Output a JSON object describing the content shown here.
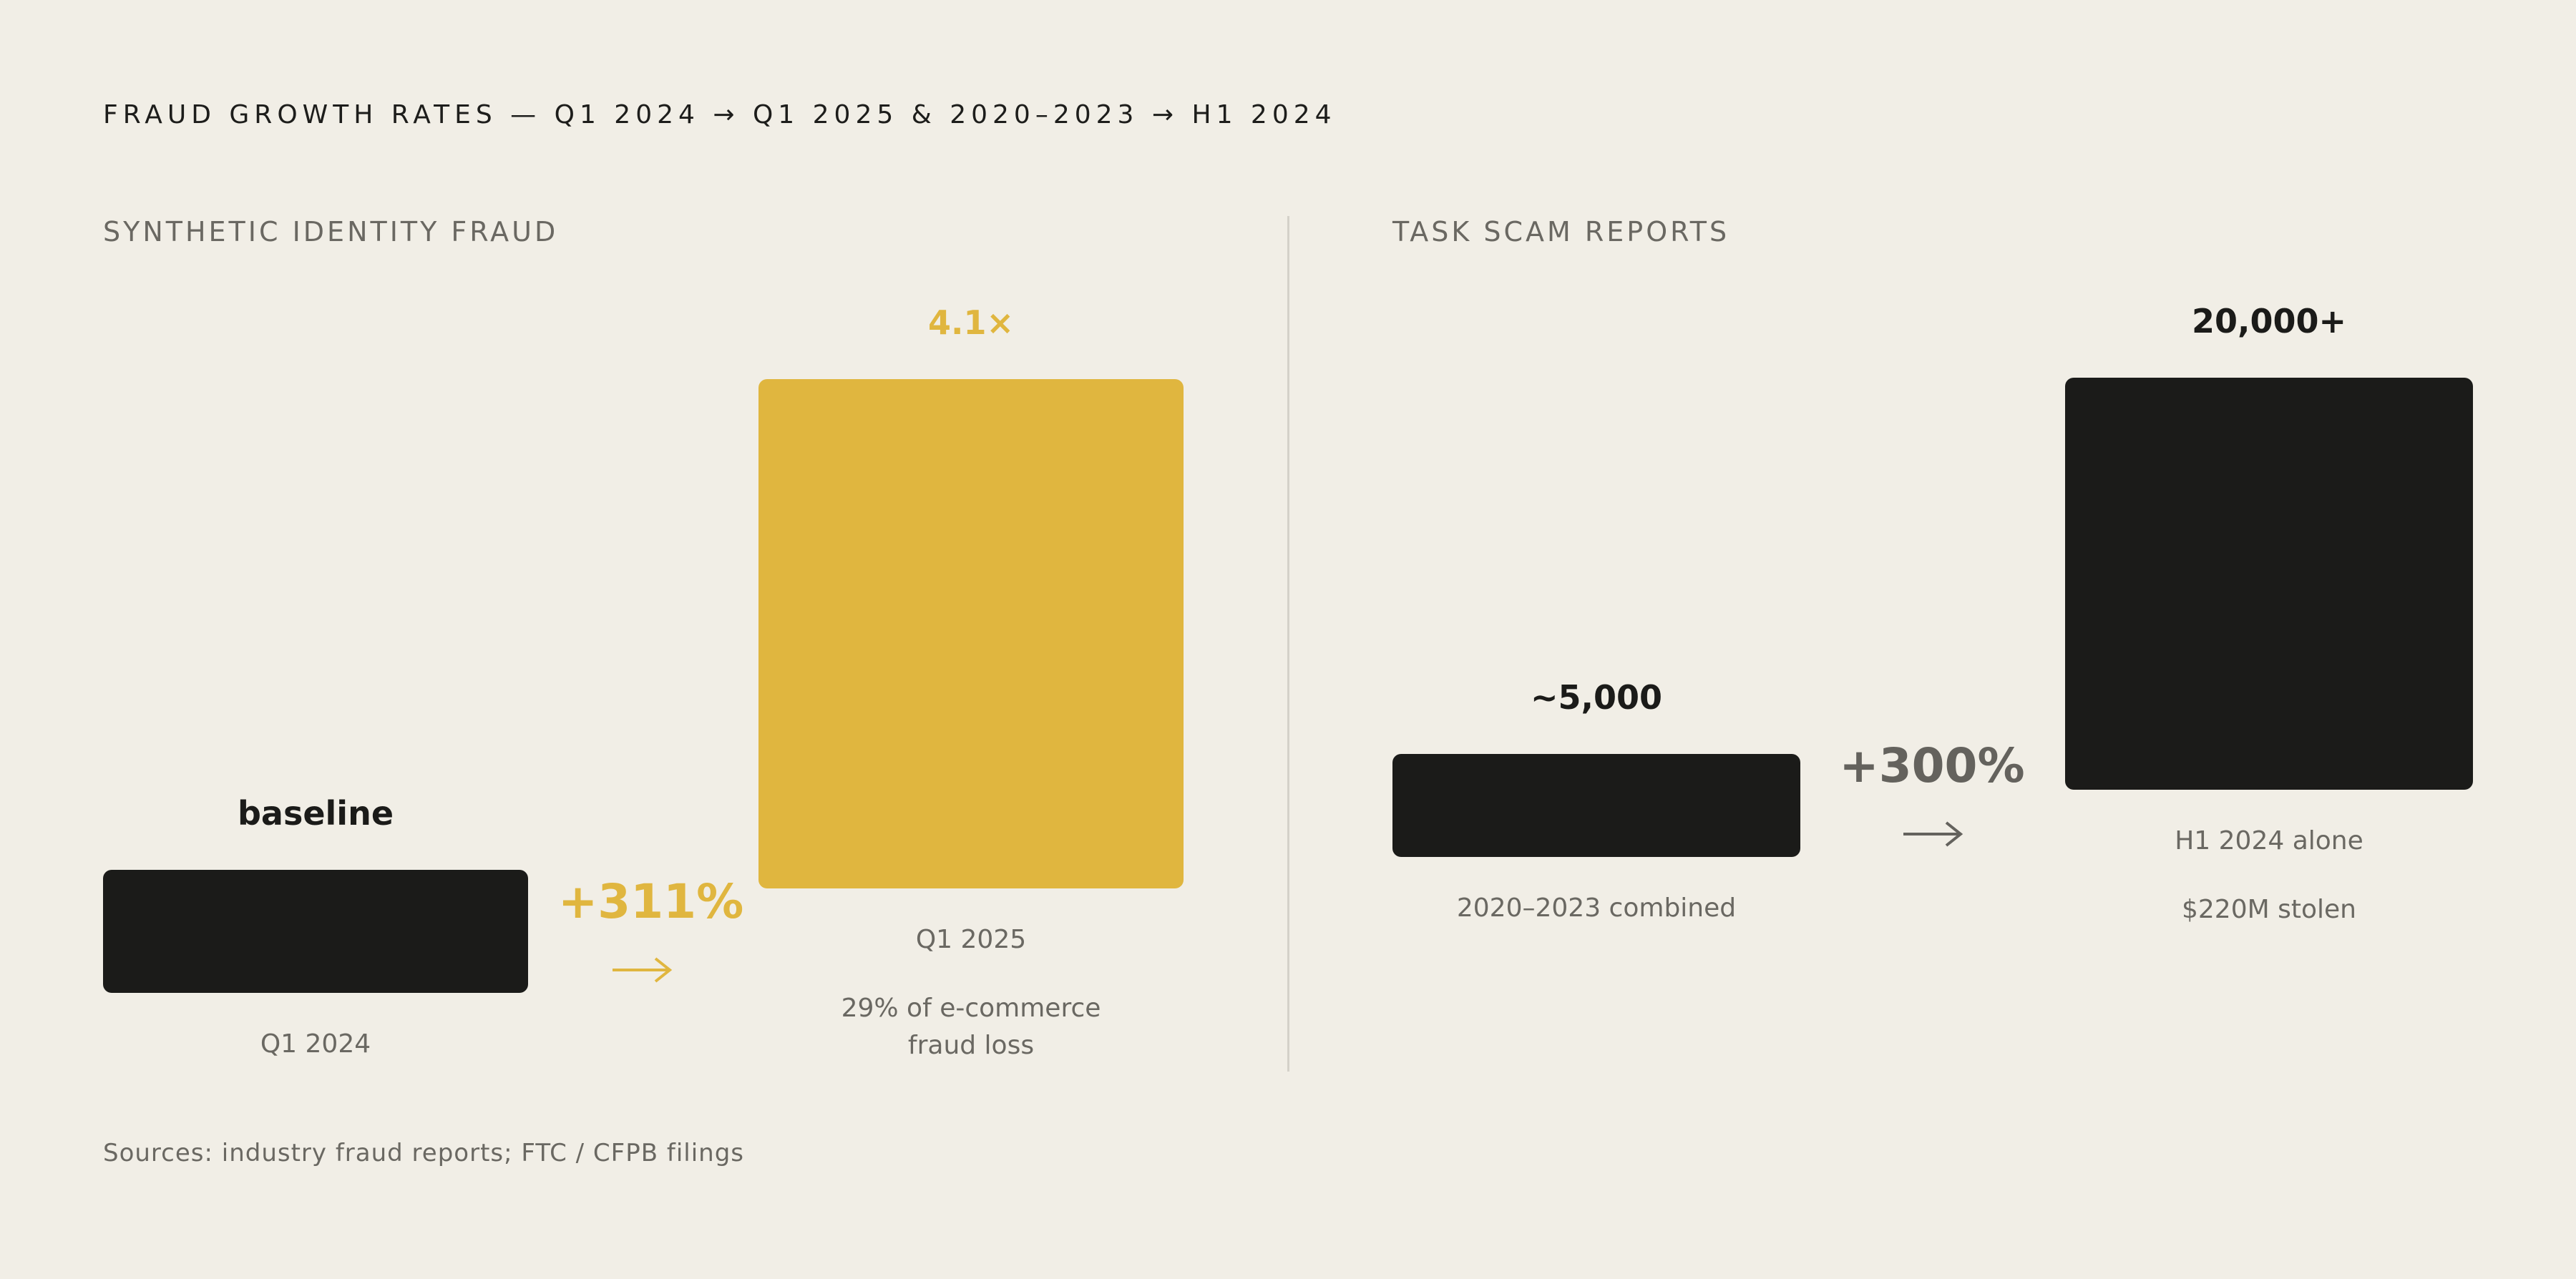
{
  "title": "FRAUD GROWTH RATES — Q1 2024 → Q1 2025 & 2020–2023 → H1 2024",
  "colors": {
    "background": "#f1eee6",
    "dark": "#1b1b19",
    "gold": "#e0b63f",
    "muted": "#6a6862"
  },
  "chart_data": [
    {
      "type": "bar",
      "title": "SYNTHETIC IDENTITY FRAUD",
      "categories": [
        "Q1 2024",
        "Q1 2025"
      ],
      "values": [
        1,
        4.1
      ],
      "value_labels": [
        "baseline",
        "4.1×"
      ],
      "notes": [
        "",
        "29% of e-commerce fraud loss"
      ],
      "change_label": "+311%",
      "bar_colors": [
        "#1b1b19",
        "#e0b63f"
      ]
    },
    {
      "type": "bar",
      "title": "TASK SCAM REPORTS",
      "categories": [
        "2020–2023 combined",
        "H1 2024 alone"
      ],
      "values": [
        5000,
        20000
      ],
      "value_labels": [
        "~5,000",
        "20,000+"
      ],
      "notes": [
        "",
        "$220M stolen"
      ],
      "change_label": "+300%",
      "bar_colors": [
        "#1b1b19",
        "#1b1b19"
      ]
    }
  ],
  "source": "Sources: industry fraud reports; FTC / CFPB filings"
}
